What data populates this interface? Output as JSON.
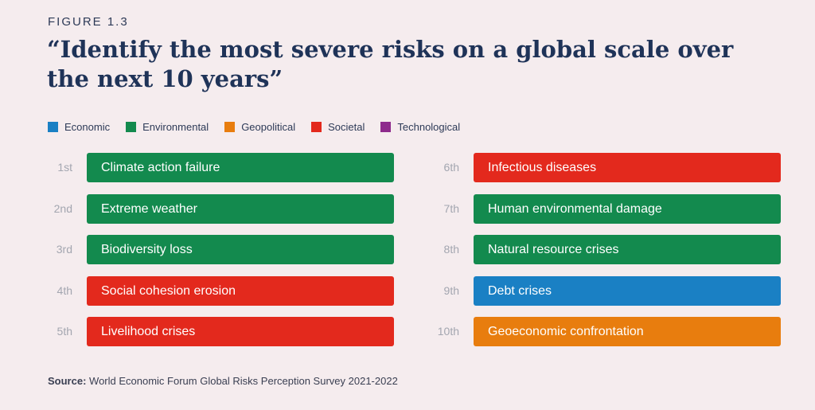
{
  "figure_label": "FIGURE 1.3",
  "chart_data": {
    "type": "table",
    "title": "“Identify the most severe risks on a global scale over the next 10 years”",
    "legend": [
      {
        "name": "Economic",
        "color": "#1a80c4"
      },
      {
        "name": "Environmental",
        "color": "#138a4e"
      },
      {
        "name": "Geopolitical",
        "color": "#e87d0e"
      },
      {
        "name": "Societal",
        "color": "#e3291d"
      },
      {
        "name": "Technological",
        "color": "#8e2a8c"
      }
    ],
    "rows": [
      {
        "rank": "1st",
        "label": "Climate action failure",
        "category": "Environmental"
      },
      {
        "rank": "2nd",
        "label": "Extreme weather",
        "category": "Environmental"
      },
      {
        "rank": "3rd",
        "label": "Biodiversity loss",
        "category": "Environmental"
      },
      {
        "rank": "4th",
        "label": "Social cohesion erosion",
        "category": "Societal"
      },
      {
        "rank": "5th",
        "label": "Livelihood crises",
        "category": "Societal"
      },
      {
        "rank": "6th",
        "label": "Infectious diseases",
        "category": "Societal"
      },
      {
        "rank": "7th",
        "label": "Human environmental damage",
        "category": "Environmental"
      },
      {
        "rank": "8th",
        "label": "Natural resource crises",
        "category": "Environmental"
      },
      {
        "rank": "9th",
        "label": "Debt crises",
        "category": "Economic"
      },
      {
        "rank": "10th",
        "label": "Geoeconomic confrontation",
        "category": "Geopolitical"
      }
    ]
  },
  "source": {
    "label": "Source:",
    "text": "World Economic Forum Global Risks Perception Survey 2021-2022"
  }
}
